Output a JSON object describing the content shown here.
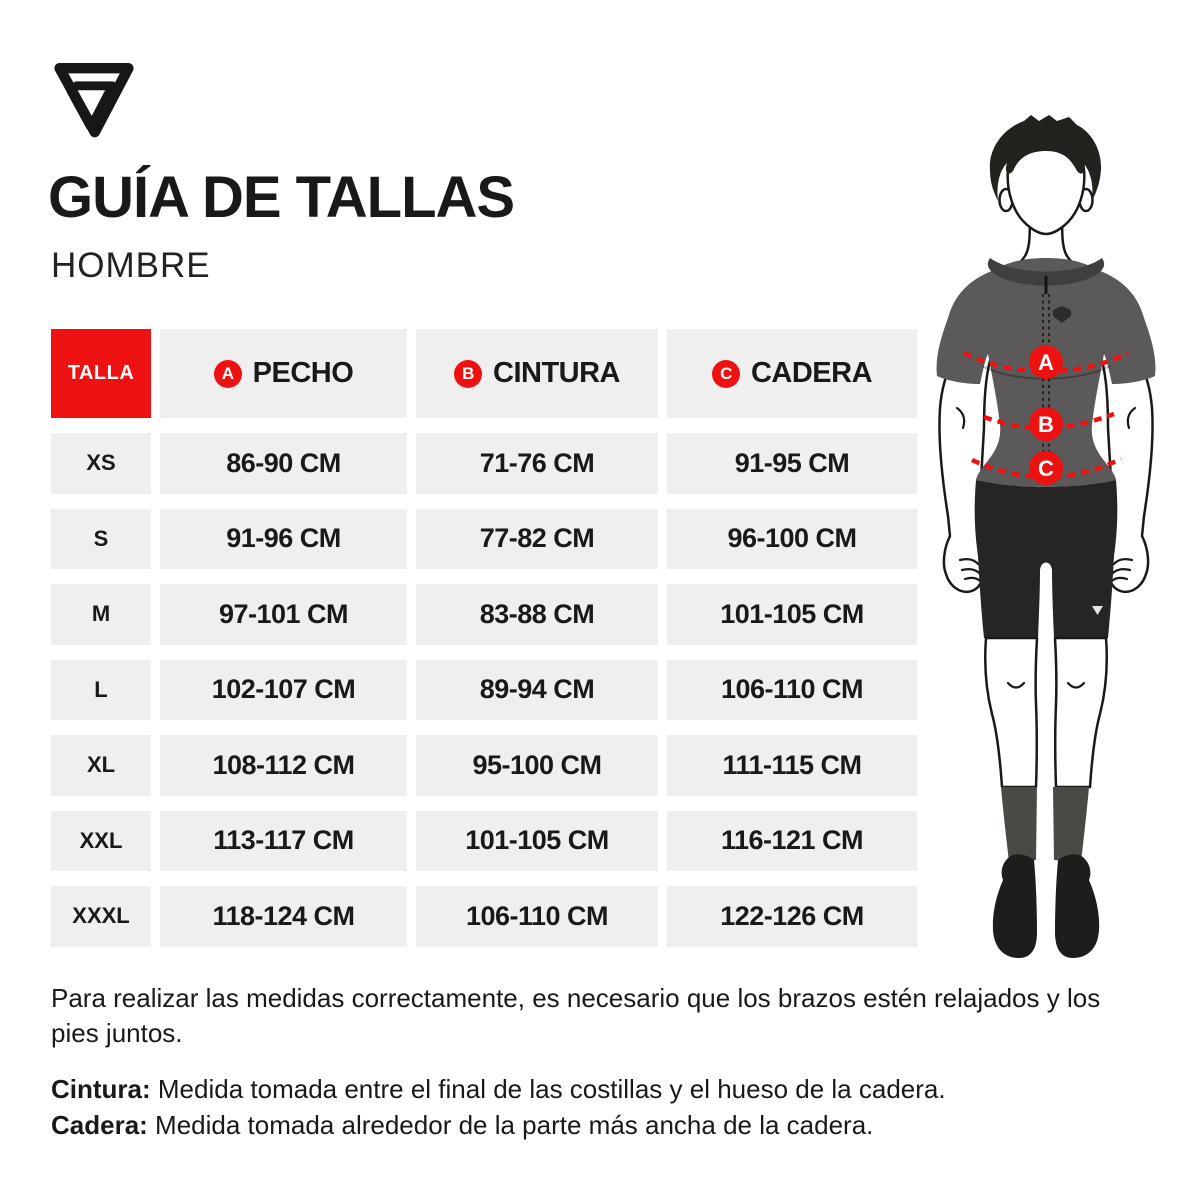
{
  "brand": {
    "logo": "triangle-stripe-logo"
  },
  "header": {
    "title": "GUÍA DE TALLAS",
    "subtitle": "HOMBRE"
  },
  "table": {
    "size_column_header": "TALLA",
    "columns": [
      {
        "letter": "A",
        "label": "PECHO"
      },
      {
        "letter": "B",
        "label": "CINTURA"
      },
      {
        "letter": "C",
        "label": "CADERA"
      }
    ],
    "rows": [
      {
        "size": "XS",
        "pecho": "86-90 CM",
        "cintura": "71-76 CM",
        "cadera": "91-95 CM"
      },
      {
        "size": "S",
        "pecho": "91-96 CM",
        "cintura": "77-82 CM",
        "cadera": "96-100 CM"
      },
      {
        "size": "M",
        "pecho": "97-101 CM",
        "cintura": "83-88 CM",
        "cadera": "101-105 CM"
      },
      {
        "size": "L",
        "pecho": "102-107 CM",
        "cintura": "89-94 CM",
        "cadera": "106-110 CM"
      },
      {
        "size": "XL",
        "pecho": "108-112 CM",
        "cintura": "95-100 CM",
        "cadera": "111-115 CM"
      },
      {
        "size": "XXL",
        "pecho": "113-117 CM",
        "cintura": "101-105 CM",
        "cadera": "116-121 CM"
      },
      {
        "size": "XXXL",
        "pecho": "118-124 CM",
        "cintura": "106-110 CM",
        "cadera": "122-126 CM"
      }
    ]
  },
  "figure": {
    "markers": [
      "A",
      "B",
      "C"
    ]
  },
  "notes": {
    "paragraph": "Para realizar las medidas correctamente, es necesario que los brazos estén relajados y los pies juntos.",
    "definitions": [
      {
        "term": "Cintura:",
        "text": " Medida tomada entre el final de las costillas y el hueso de la cadera."
      },
      {
        "term": "Cadera:",
        "text": " Medida tomada alrededor de la parte más ancha de la cadera."
      }
    ]
  },
  "colors": {
    "accent_red": "#EE1111",
    "cell_gray": "#EFEFEF",
    "text_black": "#1B1918",
    "jersey_gray": "#5B5959",
    "collar_gray": "#403E3E",
    "shorts_black": "#262424",
    "sock_gray": "#4A4944",
    "shoe_black": "#1F1D1C"
  }
}
